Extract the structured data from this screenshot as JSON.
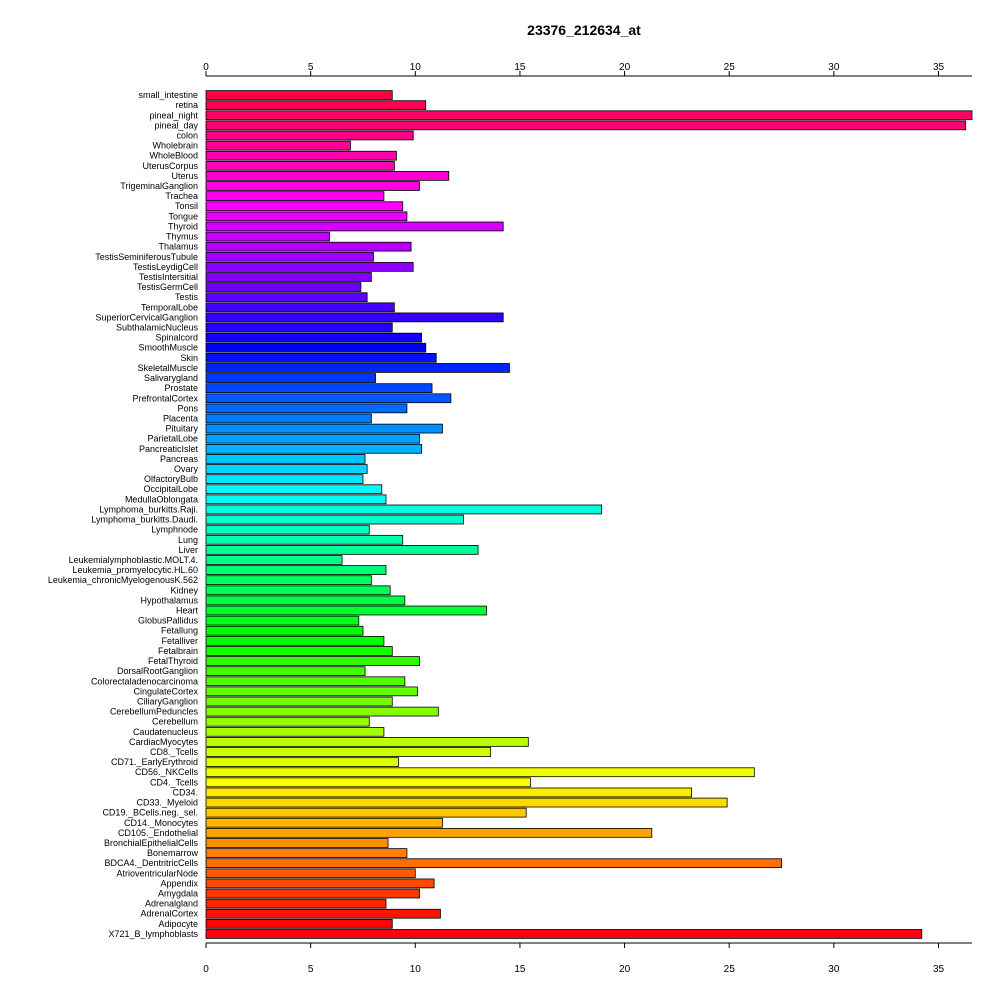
{
  "chart_data": {
    "type": "bar",
    "orientation": "horizontal",
    "title": "23376_212634_at",
    "xlabel": "",
    "ylabel": "",
    "xlim": [
      0,
      36.6
    ],
    "xticks": [
      0,
      5,
      10,
      15,
      20,
      25,
      30,
      35
    ],
    "grid": false,
    "legend": "none",
    "categories": [
      "small_intestine",
      "retina",
      "pineal_night",
      "pineal_day",
      "colon",
      "Wholebrain",
      "WholeBlood",
      "UterusCorpus",
      "Uterus",
      "TrigeminalGanglion",
      "Trachea",
      "Tonsil",
      "Tongue",
      "Thyroid",
      "Thymus",
      "Thalamus",
      "TestisSeminiferousTubule",
      "TestisLeydigCell",
      "TestisIntersitial",
      "TestisGermCell",
      "Testis",
      "TemporalLobe",
      "SuperiorCervicalGanglion",
      "SubthalamicNucleus",
      "Spinalcord",
      "SmoothMuscle",
      "Skin",
      "SkeletalMuscle",
      "Salivarygland",
      "Prostate",
      "PrefrontalCortex",
      "Pons",
      "Placenta",
      "Pituitary",
      "ParietalLobe",
      "PancreaticIslet",
      "Pancreas",
      "Ovary",
      "OlfactoryBulb",
      "OccipitalLobe",
      "MedullaOblongata",
      "Lymphoma_burkitts.Raji.",
      "Lymphoma_burkitts.Daudi.",
      "Lymphnode",
      "Lung",
      "Liver",
      "Leukemialymphoblastic.MOLT.4.",
      "Leukemia_promyelocytic.HL.60",
      "Leukemia_chronicMyelogenousK.562",
      "Kidney",
      "Hypothalamus",
      "Heart",
      "GlobusPallidus",
      "Fetallung",
      "Fetalliver",
      "Fetalbrain",
      "FetalThyroid",
      "DorsalRootGanglion",
      "Colorectaladenocarcinoma",
      "CingulateCortex",
      "CiliaryGanglion",
      "CerebellumPeduncles",
      "Cerebellum",
      "Caudatenucleus",
      "CardiacMyocytes",
      "CD8._Tcells",
      "CD71._EarlyErythroid",
      "CD56._NKCells",
      "CD4._Tcells",
      "CD34.",
      "CD33._Myeloid",
      "CD19._BCells.neg._sel.",
      "CD14._Monocytes",
      "CD105._Endothelial",
      "BronchialEpithelialCells",
      "Bonemarrow",
      "BDCA4._DentritricCells",
      "AtrioventricularNode",
      "Appendix",
      "Amygdala",
      "Adrenalgland",
      "AdrenalCortex",
      "Adipocyte",
      "X721_B_lymphoblasts"
    ],
    "values": [
      8.9,
      10.5,
      36.6,
      36.3,
      9.9,
      6.9,
      9.1,
      9.0,
      11.6,
      10.2,
      8.5,
      9.4,
      9.6,
      14.2,
      5.9,
      9.8,
      8.0,
      9.9,
      7.9,
      7.4,
      7.7,
      9.0,
      14.2,
      8.9,
      10.3,
      10.5,
      11.0,
      14.5,
      8.1,
      10.8,
      11.7,
      9.6,
      7.9,
      11.3,
      10.2,
      10.3,
      7.6,
      7.7,
      7.5,
      8.4,
      8.6,
      18.9,
      12.3,
      7.8,
      9.4,
      13.0,
      6.5,
      8.6,
      7.9,
      8.8,
      9.5,
      13.4,
      7.3,
      7.5,
      8.5,
      8.9,
      10.2,
      7.6,
      9.5,
      10.1,
      8.9,
      11.1,
      7.8,
      8.5,
      15.4,
      13.6,
      9.2,
      26.2,
      15.5,
      23.2,
      24.9,
      15.3,
      11.3,
      21.3,
      8.7,
      9.6,
      27.5,
      10.0,
      10.9,
      10.2,
      8.6,
      11.2,
      8.9,
      34.2
    ]
  }
}
